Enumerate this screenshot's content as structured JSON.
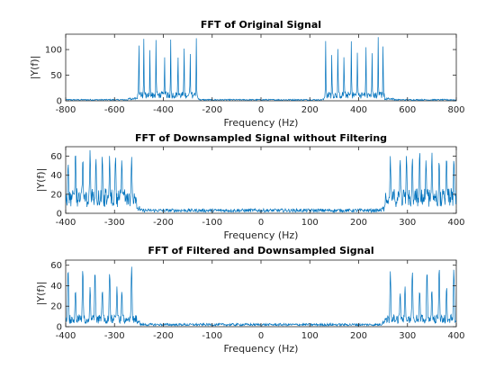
{
  "colors": {
    "line": "#0072BD",
    "axes": "#262626"
  },
  "chart_data": [
    {
      "type": "line",
      "title": "FFT of Original Signal",
      "xlabel": "Frequency (Hz)",
      "ylabel": "|Y(f)|",
      "xlim": [
        -800,
        800
      ],
      "ylim": [
        0,
        130
      ],
      "xticks": [
        -800,
        -600,
        -400,
        -200,
        0,
        200,
        400,
        600,
        800
      ],
      "yticks": [
        0,
        50,
        100
      ],
      "grid": false,
      "series": [
        {
          "peaks_hz": [
            -500,
            -480,
            -455,
            -430,
            -395,
            -370,
            -340,
            -315,
            -290,
            -265,
            265,
            290,
            315,
            340,
            370,
            395,
            430,
            455,
            480,
            500
          ],
          "peak_values": [
            125,
            125,
            102,
            125,
            102,
            125,
            102,
            112,
            102,
            125,
            125,
            102,
            112,
            102,
            125,
            102,
            125,
            102,
            125,
            125
          ],
          "band_hz": [
            260,
            505
          ],
          "band_floor": 15,
          "baseline": 2
        }
      ]
    },
    {
      "type": "line",
      "title": "FFT of Downsampled Signal without Filtering",
      "xlabel": "Frequency (Hz)",
      "ylabel": "|Y(f)|",
      "xlim": [
        -400,
        400
      ],
      "ylim": [
        0,
        70
      ],
      "xticks": [
        -400,
        -300,
        -200,
        -100,
        0,
        100,
        200,
        300,
        400
      ],
      "yticks": [
        0,
        20,
        40,
        60
      ],
      "grid": false,
      "series": [
        {
          "peaks_hz": [
            -395,
            -380,
            -365,
            -350,
            -338,
            -325,
            -310,
            -298,
            -285,
            -265,
            265,
            285,
            298,
            310,
            325,
            338,
            350,
            365,
            380,
            395
          ],
          "peak_values": [
            62,
            68,
            62,
            68,
            60,
            68,
            62,
            68,
            60,
            62,
            62,
            60,
            68,
            62,
            68,
            60,
            68,
            62,
            68,
            62
          ],
          "band_hz": [
            255,
            400
          ],
          "band_floor": 22,
          "baseline": 3
        }
      ]
    },
    {
      "type": "line",
      "title": "FFT of Filtered and Downsampled Signal",
      "xlabel": "Frequency (Hz)",
      "ylabel": "|Y(f)|",
      "xlim": [
        -400,
        400
      ],
      "ylim": [
        0,
        65
      ],
      "xticks": [
        -400,
        -300,
        -200,
        -100,
        0,
        100,
        200,
        300,
        400
      ],
      "yticks": [
        0,
        20,
        40,
        60
      ],
      "grid": false,
      "series": [
        {
          "peaks_hz": [
            -395,
            -380,
            -365,
            -350,
            -340,
            -325,
            -310,
            -295,
            -285,
            -265,
            265,
            285,
            295,
            310,
            325,
            340,
            350,
            365,
            380,
            395
          ],
          "peak_values": [
            60,
            42,
            60,
            40,
            62,
            40,
            60,
            42,
            38,
            62,
            62,
            38,
            42,
            60,
            40,
            62,
            40,
            60,
            42,
            60
          ],
          "band_hz": [
            255,
            400
          ],
          "band_floor": 10,
          "baseline": 2
        }
      ]
    }
  ]
}
